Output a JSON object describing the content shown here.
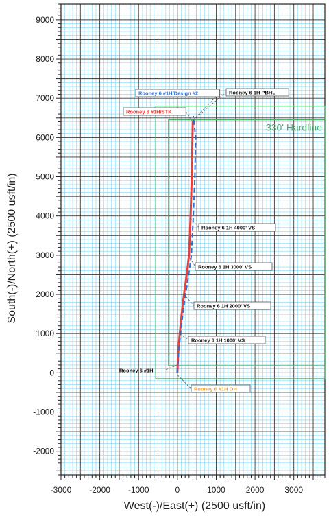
{
  "chart_data": {
    "type": "line",
    "title": "",
    "xlabel": "West(-)/East(+) (2500 usft/in)",
    "ylabel": "South(-)/North(+) (2500 usft/in)",
    "xlim": [
      -3000,
      3800
    ],
    "ylim": [
      -2600,
      9400
    ],
    "x_ticks": [
      "-3000",
      "-2000",
      "-1000",
      "0",
      "1000",
      "2000",
      "3000"
    ],
    "y_ticks": [
      "9000",
      "8000",
      "7000",
      "6000",
      "5000",
      "4000",
      "3000",
      "2000",
      "1000",
      "0",
      "-1000",
      "-2000"
    ],
    "grid": true,
    "series": [
      {
        "name": "Rooney 6 #1H/STK",
        "color": "#e8413c",
        "x": [
          0,
          20,
          60,
          110,
          170,
          240,
          300,
          340,
          370,
          395
        ],
        "y": [
          0,
          500,
          1000,
          1500,
          2000,
          2500,
          3000,
          4000,
          5000,
          6400
        ]
      },
      {
        "name": "Rooney 6 #1H/Design #2",
        "color": "#2f6fd6",
        "x": [
          0,
          30,
          80,
          140,
          210,
          290,
          360,
          410,
          450,
          470,
          410
        ],
        "y": [
          0,
          500,
          1000,
          1500,
          2000,
          2500,
          3000,
          4000,
          5000,
          6000,
          6550
        ]
      }
    ],
    "hardlines": {
      "label": "330' Hardline",
      "color": "#4caf68",
      "outer": {
        "x": [
          -560,
          3800
        ],
        "y": [
          -150,
          6800
        ]
      },
      "inner": {
        "x": [
          -230,
          3800
        ],
        "y": [
          180,
          6450
        ]
      }
    },
    "annotations": [
      {
        "text": "Rooney 6 1H PBHL",
        "x": 410,
        "y": 6450
      },
      {
        "text": "Rooney 6 #1H/Design #2",
        "x": 410,
        "y": 6450
      },
      {
        "text": "Rooney 6 #1H/STK",
        "x": 395,
        "y": 6400
      },
      {
        "text": "Rooney 6 1H 4000' VS",
        "x": 330,
        "y": 3950
      },
      {
        "text": "Rooney 6 1H 3000' VS",
        "x": 280,
        "y": 3000
      },
      {
        "text": "Rooney 6 1H 2000' VS",
        "x": 170,
        "y": 2000
      },
      {
        "text": "Rooney 6 1H 1000' VS",
        "x": 60,
        "y": 1000
      },
      {
        "text": "Rooney 6 #1H",
        "x": 0,
        "y": 200
      },
      {
        "text": "Rooney 6 #1H OH",
        "x": 0,
        "y": -50
      }
    ]
  }
}
